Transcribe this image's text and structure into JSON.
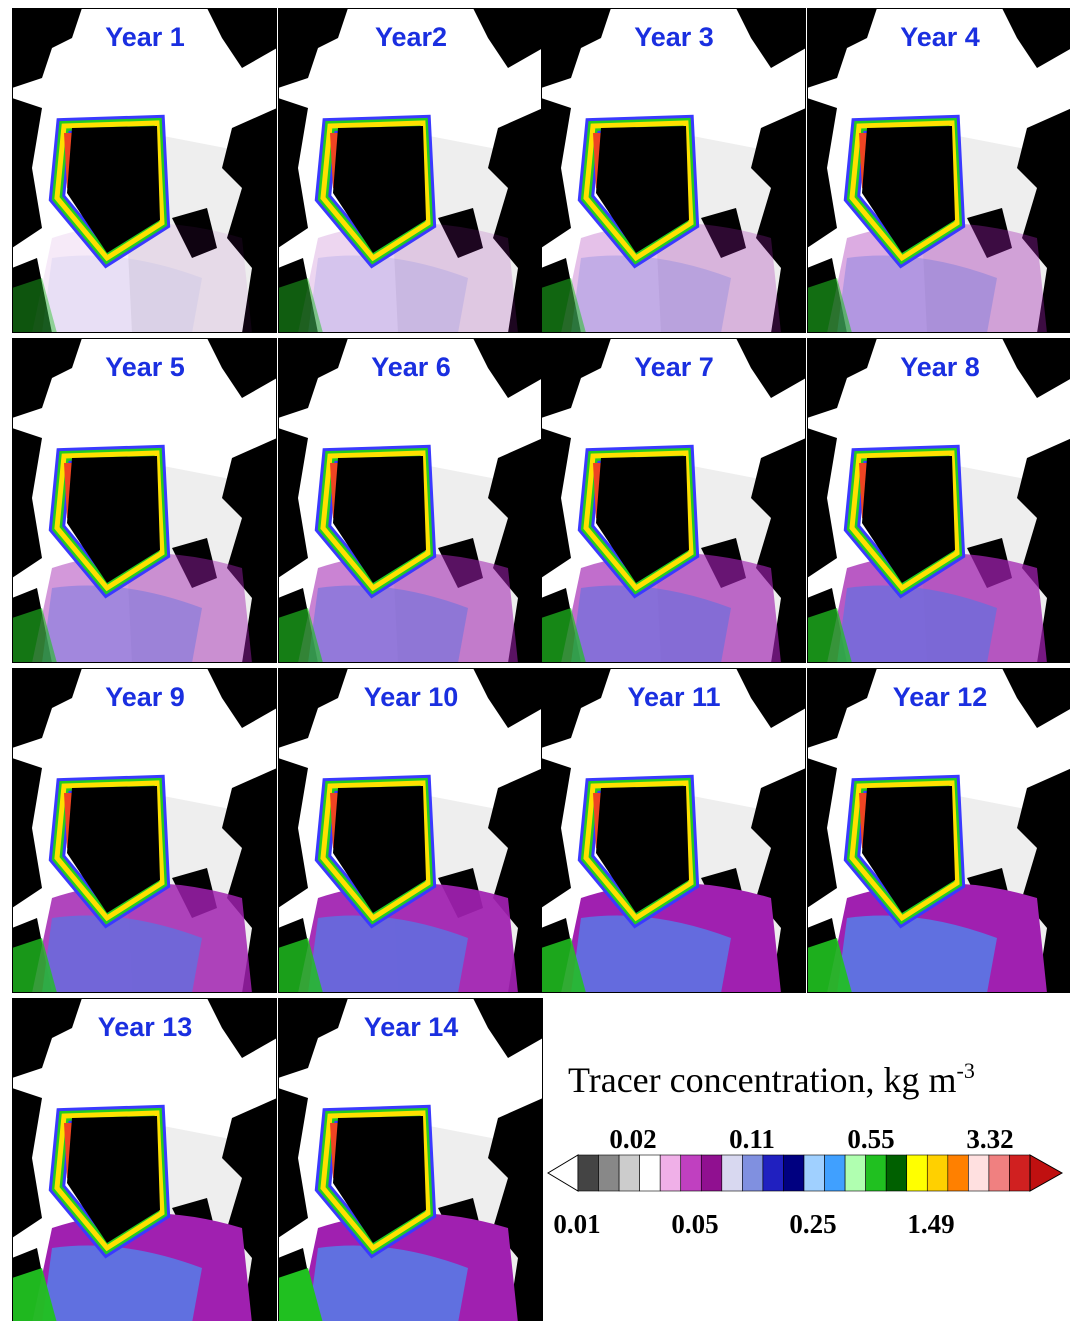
{
  "panels": [
    {
      "label": "Year 1"
    },
    {
      "label": "Year2"
    },
    {
      "label": "Year 3"
    },
    {
      "label": "Year 4"
    },
    {
      "label": "Year 5"
    },
    {
      "label": "Year 6"
    },
    {
      "label": "Year 7"
    },
    {
      "label": "Year 8"
    },
    {
      "label": "Year 9"
    },
    {
      "label": "Year 10"
    },
    {
      "label": "Year 11"
    },
    {
      "label": "Year 12"
    },
    {
      "label": "Year 13"
    },
    {
      "label": "Year 14"
    }
  ],
  "colorbar": {
    "title": "Tracer concentration, kg m",
    "title_superscript": "-3",
    "ticks_top": [
      "0.02",
      "0.11",
      "0.55",
      "3.32"
    ],
    "ticks_bottom": [
      "0.01",
      "0.05",
      "0.25",
      "1.49"
    ]
  }
}
